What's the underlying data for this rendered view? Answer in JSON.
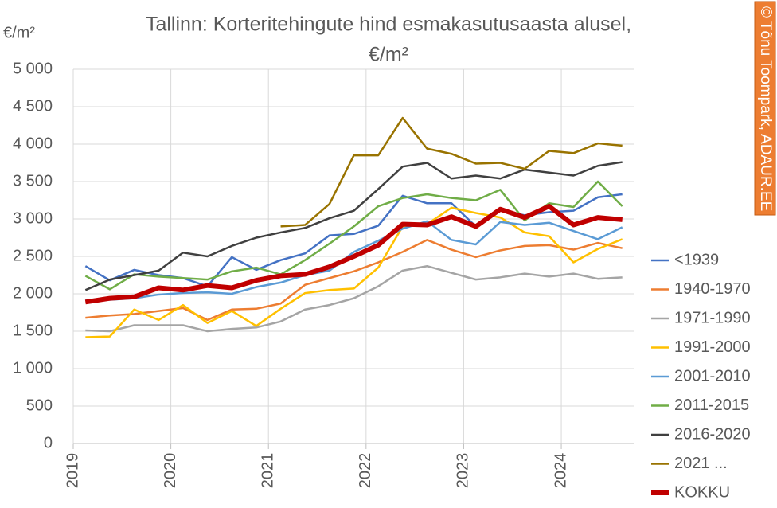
{
  "chart_data": {
    "type": "line",
    "title": [
      "Tallinn: Korteritehingute hind esmakasutusaasta alusel,",
      "€/m²"
    ],
    "y_label": "€/m²",
    "credit": "© Tõnu Toompark, ADAUR.EE",
    "x": [
      2019.125,
      2019.375,
      2019.625,
      2019.875,
      2020.125,
      2020.375,
      2020.625,
      2020.875,
      2021.125,
      2021.375,
      2021.625,
      2021.875,
      2022.125,
      2022.375,
      2022.625,
      2022.875,
      2023.125,
      2023.375,
      2023.625,
      2023.875,
      2024.125,
      2024.375,
      2024.625
    ],
    "xlim": [
      2019,
      2024.75
    ],
    "xticks": [
      2019,
      2020,
      2021,
      2022,
      2023,
      2024
    ],
    "ylim": [
      0,
      5000
    ],
    "yticks": [
      0,
      500,
      {
        "value": 1000,
        "label": "1 000"
      },
      {
        "value": 1500,
        "label": "1 500"
      },
      {
        "value": 2000,
        "label": "2 000"
      },
      {
        "value": 2500,
        "label": "2 500"
      },
      {
        "value": 3000,
        "label": "3 000"
      },
      {
        "value": 3500,
        "label": "3 500"
      },
      {
        "value": 4000,
        "label": "4 000"
      },
      {
        "value": 4500,
        "label": "4 500"
      },
      {
        "value": 5000,
        "label": "5 000"
      }
    ],
    "grid": true,
    "legend": "right",
    "series": [
      {
        "name": "<1939",
        "color": "#4472c4",
        "values": [
          2370,
          2180,
          2320,
          2250,
          2210,
          2100,
          2490,
          2320,
          2450,
          2540,
          2780,
          2800,
          2910,
          3310,
          3210,
          3210,
          2900,
          3120,
          3050,
          3090,
          3110,
          3290,
          3330
        ]
      },
      {
        "name": "1940-1970",
        "color": "#ed7d31",
        "values": [
          1680,
          1710,
          1730,
          1770,
          1810,
          1650,
          1790,
          1800,
          1870,
          2120,
          2210,
          2300,
          2420,
          2560,
          2720,
          2590,
          2490,
          2580,
          2640,
          2650,
          2590,
          2680,
          2610
        ]
      },
      {
        "name": "1971-1990",
        "color": "#a5a5a5",
        "values": [
          1510,
          1500,
          1580,
          1580,
          1580,
          1500,
          1530,
          1550,
          1630,
          1790,
          1850,
          1940,
          2100,
          2310,
          2370,
          2280,
          2190,
          2220,
          2270,
          2230,
          2270,
          2200,
          2220
        ]
      },
      {
        "name": "1991-2000",
        "color": "#ffc000",
        "values": [
          1420,
          1430,
          1790,
          1650,
          1850,
          1610,
          1770,
          1570,
          1800,
          2010,
          2050,
          2070,
          2350,
          2900,
          2930,
          3150,
          3080,
          3020,
          2820,
          2770,
          2420,
          2600,
          2730
        ]
      },
      {
        "name": "2001-2010",
        "color": "#5b9bd5",
        "values": [
          1920,
          1920,
          1940,
          1990,
          2010,
          2020,
          2000,
          2090,
          2150,
          2250,
          2310,
          2560,
          2710,
          2870,
          2970,
          2720,
          2660,
          2960,
          2920,
          2950,
          2840,
          2730,
          2890
        ]
      },
      {
        "name": "2011-2015",
        "color": "#70ad47",
        "values": [
          2240,
          2060,
          2260,
          2230,
          2210,
          2190,
          2300,
          2350,
          2260,
          2450,
          2670,
          2900,
          3170,
          3280,
          3330,
          3280,
          3250,
          3390,
          2980,
          3210,
          3160,
          3500,
          3170
        ]
      },
      {
        "name": "2016-2020",
        "color": "#404040",
        "values": [
          2050,
          2190,
          2250,
          2310,
          2550,
          2500,
          2640,
          2750,
          2820,
          2880,
          3010,
          3110,
          3400,
          3700,
          3750,
          3540,
          3580,
          3540,
          3660,
          3620,
          3580,
          3710,
          3760
        ]
      },
      {
        "name": "2021 ...",
        "color": "#997300",
        "values": [
          null,
          null,
          null,
          null,
          null,
          null,
          null,
          null,
          2900,
          2920,
          3200,
          3850,
          3850,
          4350,
          3940,
          3870,
          3740,
          3750,
          3670,
          3910,
          3880,
          4010,
          3980
        ]
      },
      {
        "name": "KOKKU",
        "color": "#c00000",
        "width": 6,
        "values": [
          1890,
          1940,
          1960,
          2080,
          2050,
          2110,
          2080,
          2180,
          2240,
          2260,
          2360,
          2500,
          2650,
          2930,
          2920,
          3030,
          2900,
          3130,
          3020,
          3170,
          2920,
          3020,
          2990
        ]
      }
    ]
  }
}
